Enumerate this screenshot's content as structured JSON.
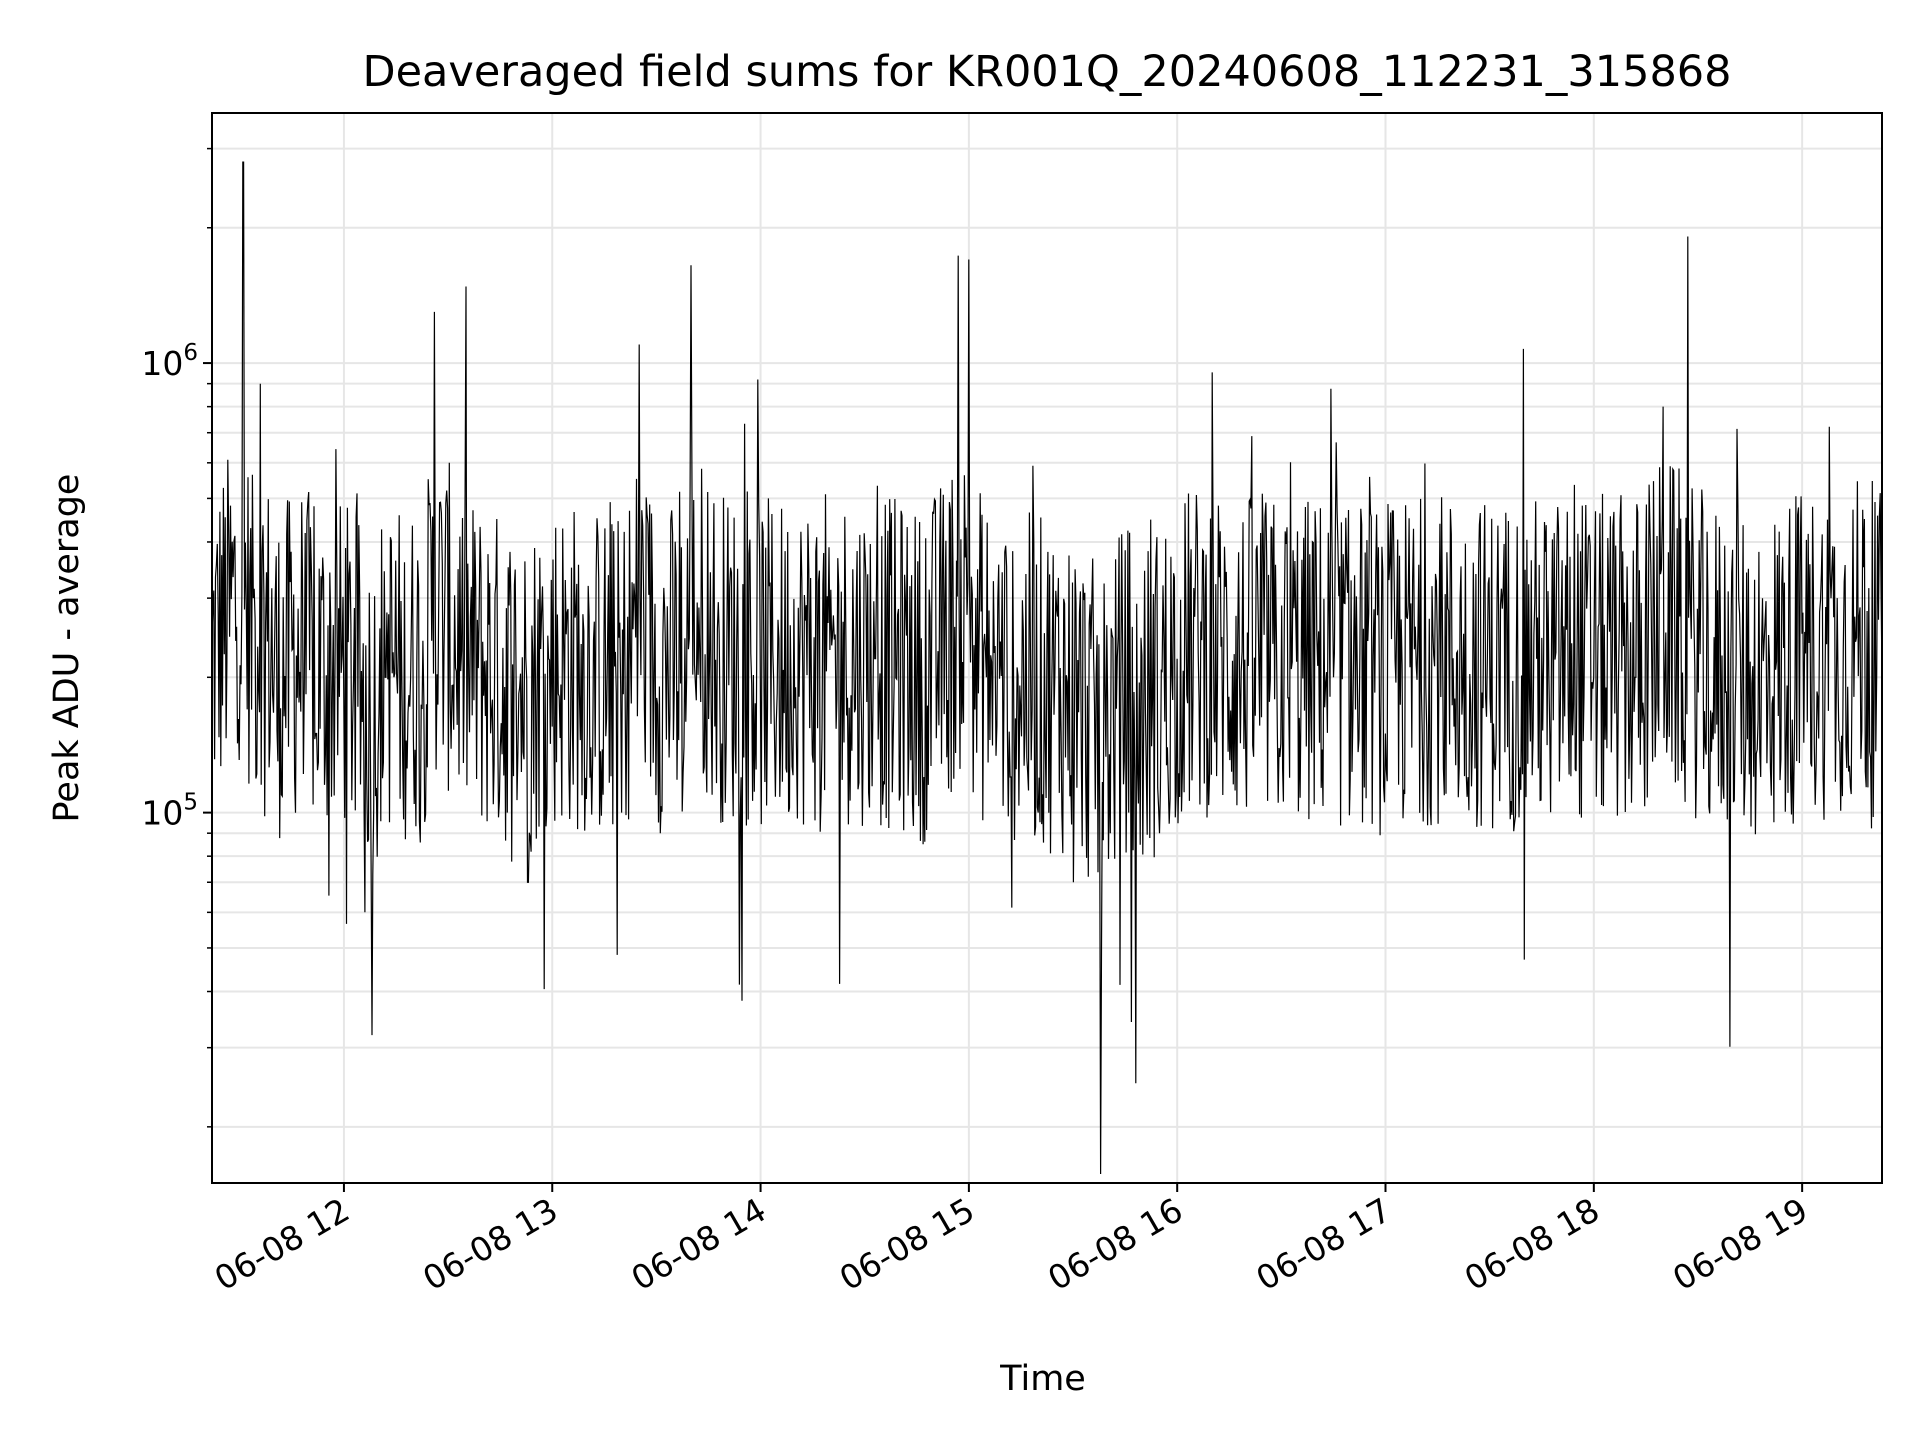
{
  "chart_data": {
    "type": "line",
    "title": "Deaveraged field sums for KR001Q_20240608_112231_315868",
    "xlabel": "Time",
    "ylabel": "Peak ADU - average",
    "x_axis": {
      "kind": "time",
      "range": [
        "2024-06-08 11:22",
        "2024-06-08 19:23"
      ],
      "ticks": [
        {
          "value": "2024-06-08 12:00",
          "label": "06-08 12"
        },
        {
          "value": "2024-06-08 13:00",
          "label": "06-08 13"
        },
        {
          "value": "2024-06-08 14:00",
          "label": "06-08 14"
        },
        {
          "value": "2024-06-08 15:00",
          "label": "06-08 15"
        },
        {
          "value": "2024-06-08 16:00",
          "label": "06-08 16"
        },
        {
          "value": "2024-06-08 17:00",
          "label": "06-08 17"
        },
        {
          "value": "2024-06-08 18:00",
          "label": "06-08 18"
        },
        {
          "value": "2024-06-08 19:00",
          "label": "06-08 19"
        }
      ]
    },
    "y_axis": {
      "scale": "log",
      "range": [
        15000,
        3600000
      ],
      "ticks": [
        {
          "value": 100000,
          "base": "10",
          "exp": "5"
        },
        {
          "value": 1000000,
          "base": "10",
          "exp": "6"
        }
      ]
    },
    "grid": true,
    "legend": "none",
    "line_color": "#000000",
    "grid_color": "#e6e6e6",
    "series": [
      {
        "x": [
          "2024-06-08 11:22",
          "2024-06-08 11:31",
          "2024-06-08 11:34",
          "2024-06-08 11:36",
          "2024-06-08 11:40",
          "2024-06-08 11:41",
          "2024-06-08 11:48",
          "2024-06-08 11:52",
          "2024-06-08 12:00",
          "2024-06-08 12:06",
          "2024-06-08 12:08",
          "2024-06-08 12:12",
          "2024-06-08 12:17",
          "2024-06-08 12:23",
          "2024-06-08 12:26",
          "2024-06-08 12:36",
          "2024-06-08 12:47",
          "2024-06-08 12:53",
          "2024-06-08 12:59",
          "2024-06-08 13:10",
          "2024-06-08 13:20",
          "2024-06-08 13:25",
          "2024-06-08 13:30",
          "2024-06-08 13:38",
          "2024-06-08 13:40",
          "2024-06-08 13:48",
          "2024-06-08 14:00",
          "2024-06-08 14:10",
          "2024-06-08 14:20",
          "2024-06-08 14:33",
          "2024-06-08 14:47",
          "2024-06-08 15:00",
          "2024-06-08 15:02",
          "2024-06-08 15:05",
          "2024-06-08 15:12",
          "2024-06-08 15:20",
          "2024-06-08 15:30",
          "2024-06-08 15:38",
          "2024-06-08 15:46",
          "2024-06-08 15:48",
          "2024-06-08 15:55",
          "2024-06-08 16:00",
          "2024-06-08 16:08",
          "2024-06-08 16:18",
          "2024-06-08 16:32",
          "2024-06-08 16:45",
          "2024-06-08 17:00",
          "2024-06-08 17:15",
          "2024-06-08 17:30",
          "2024-06-08 17:47",
          "2024-06-08 18:00",
          "2024-06-08 18:12",
          "2024-06-08 18:20",
          "2024-06-08 18:35",
          "2024-06-08 18:48",
          "2024-06-08 19:00",
          "2024-06-08 19:10",
          "2024-06-08 19:18",
          "2024-06-08 19:23"
        ],
        "y": [
          250000,
          2800000,
          300000,
          900000,
          220000,
          130000,
          330000,
          150000,
          180000,
          60000,
          32000,
          200000,
          130000,
          180000,
          1300000,
          200000,
          100000,
          70000,
          220000,
          150000,
          100000,
          1100000,
          180000,
          140000,
          1650000,
          250000,
          170000,
          190000,
          230000,
          220000,
          120000,
          1700000,
          300000,
          200000,
          120000,
          100000,
          70000,
          15000,
          100000,
          25000,
          90000,
          220000,
          300000,
          200000,
          180000,
          200000,
          150000,
          240000,
          180000,
          200000,
          200000,
          200000,
          800000,
          150000,
          120000,
          250000,
          300000,
          450000,
          200000
        ]
      }
    ]
  }
}
